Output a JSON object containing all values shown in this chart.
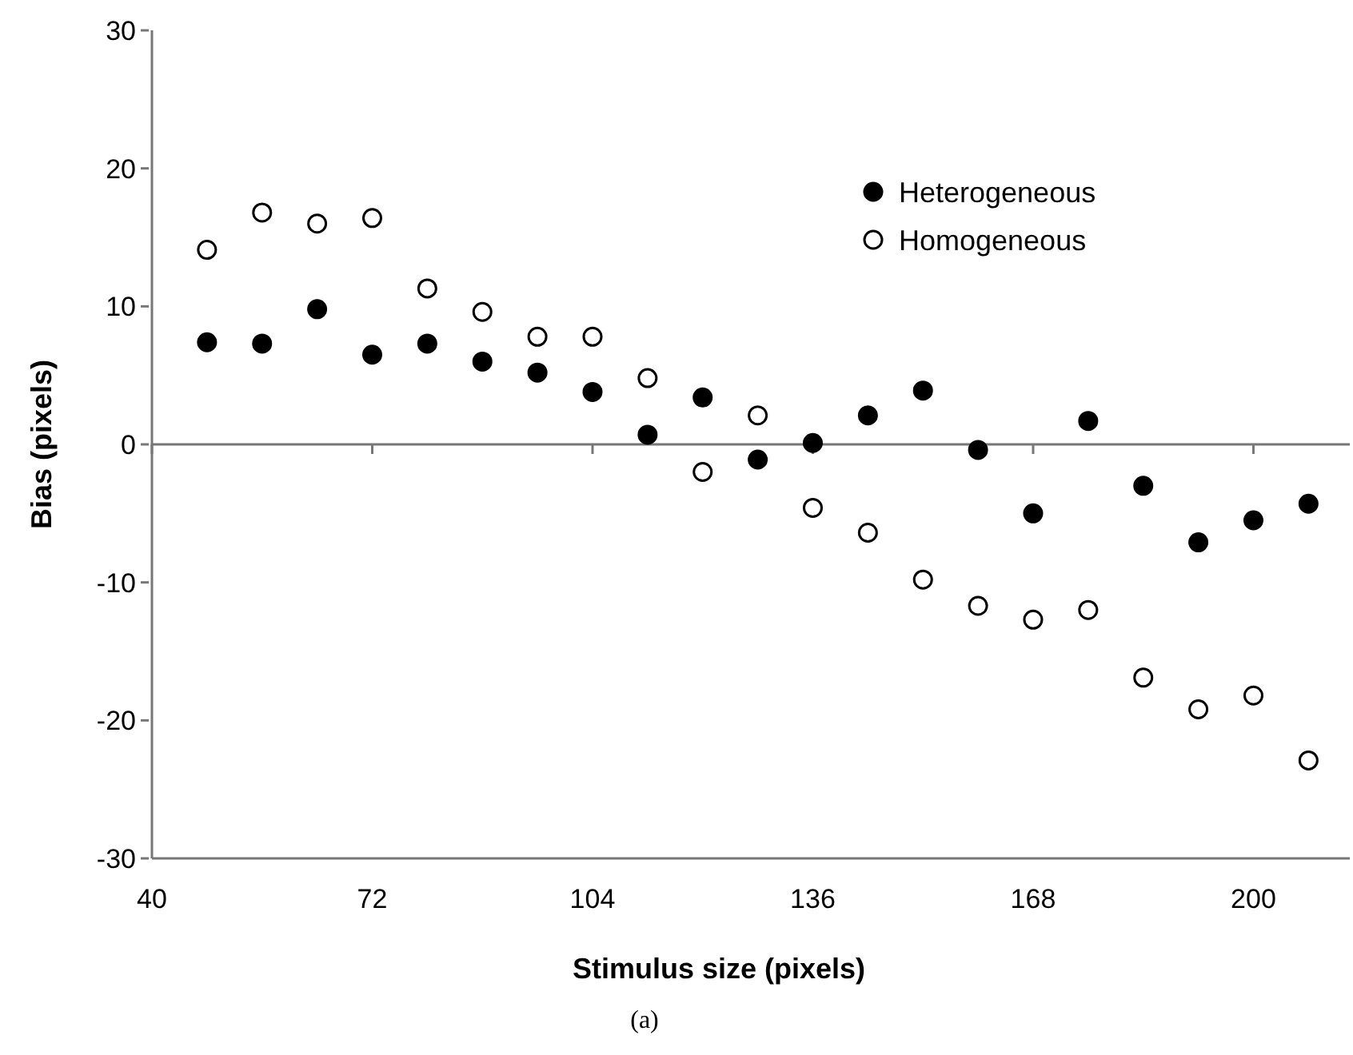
{
  "chart_data": {
    "type": "scatter",
    "xlabel": "Stimulus size (pixels)",
    "ylabel": "Bias (pixels)",
    "annotations": [
      "(a)"
    ],
    "x": [
      48,
      56,
      64,
      72,
      80,
      88,
      96,
      104,
      112,
      120,
      128,
      136,
      144,
      152,
      160,
      168,
      176,
      184,
      192,
      200,
      208
    ],
    "series": [
      {
        "name": "Heterogeneous",
        "color": "#000000",
        "marker": "circle",
        "values": [
          7.4,
          7.3,
          9.8,
          6.5,
          7.3,
          6.0,
          5.2,
          3.8,
          0.7,
          3.4,
          -1.1,
          0.1,
          2.1,
          3.9,
          -0.4,
          -5.0,
          1.7,
          -3.0,
          -7.1,
          -5.5,
          -4.3
        ]
      },
      {
        "name": "Homogeneous",
        "color": "#ffffff",
        "marker": "circle",
        "values": [
          14.1,
          16.8,
          16.0,
          16.4,
          11.3,
          9.6,
          7.8,
          7.8,
          4.8,
          -2.0,
          2.1,
          -4.6,
          -6.4,
          -9.8,
          -11.7,
          -12.7,
          -12.0,
          -16.9,
          -19.2,
          -18.2,
          -22.9
        ]
      }
    ],
    "xlim": [
      40,
      214
    ],
    "ylim": [
      -30,
      30
    ],
    "xticks": [
      40,
      72,
      104,
      136,
      168,
      200
    ],
    "yticks": [
      -30,
      -20,
      -10,
      0,
      10,
      20,
      30
    ],
    "ref_lines": [
      {
        "axis": "y",
        "value": 0
      }
    ],
    "grid": false,
    "legend": "top right"
  }
}
